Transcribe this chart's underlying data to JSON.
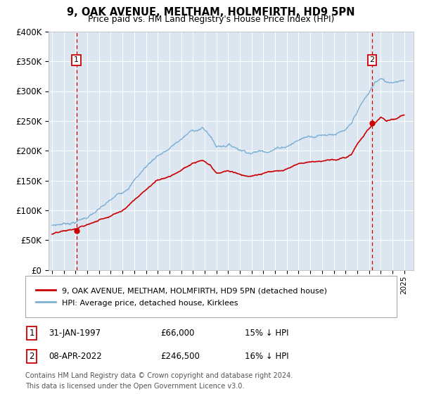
{
  "title": "9, OAK AVENUE, MELTHAM, HOLMFIRTH, HD9 5PN",
  "subtitle": "Price paid vs. HM Land Registry's House Price Index (HPI)",
  "ylim": [
    0,
    400000
  ],
  "yticks": [
    0,
    50000,
    100000,
    150000,
    200000,
    250000,
    300000,
    350000,
    400000
  ],
  "ytick_labels": [
    "£0",
    "£50K",
    "£100K",
    "£150K",
    "£200K",
    "£250K",
    "£300K",
    "£350K",
    "£400K"
  ],
  "plot_bg_color": "#dce6f1",
  "sale1_date": 1997.08,
  "sale1_price": 66000,
  "sale1_label": "1",
  "sale2_date": 2022.27,
  "sale2_price": 246500,
  "sale2_label": "2",
  "legend_line1": "9, OAK AVENUE, MELTHAM, HOLMFIRTH, HD9 5PN (detached house)",
  "legend_line2": "HPI: Average price, detached house, Kirklees",
  "footer1": "Contains HM Land Registry data © Crown copyright and database right 2024.",
  "footer2": "This data is licensed under the Open Government Licence v3.0.",
  "table_row1": [
    "1",
    "31-JAN-1997",
    "£66,000",
    "15% ↓ HPI"
  ],
  "table_row2": [
    "2",
    "08-APR-2022",
    "£246,500",
    "16% ↓ HPI"
  ],
  "line_color_red": "#cc0000",
  "line_color_blue": "#7bafd4",
  "marker_color_red": "#cc0000",
  "xlim_left": 1994.7,
  "xlim_right": 2025.8
}
